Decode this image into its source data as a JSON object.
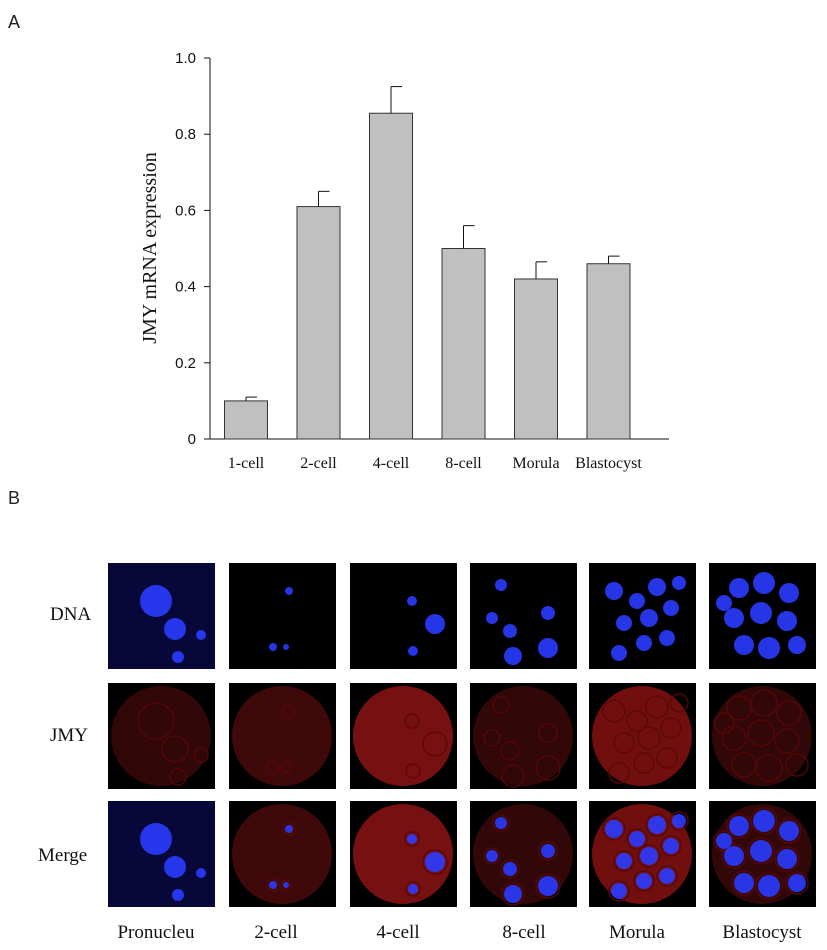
{
  "panel_a_letter": "A",
  "panel_b_letter": "B",
  "chart_data": {
    "type": "bar",
    "title": "",
    "xlabel": "",
    "ylabel": "JMY mRNA expression",
    "categories": [
      "1-cell",
      "2-cell",
      "4-cell",
      "8-cell",
      "Morula",
      "Blastocyst"
    ],
    "values": [
      0.1,
      0.61,
      0.855,
      0.5,
      0.42,
      0.46
    ],
    "errors": [
      0.01,
      0.04,
      0.07,
      0.06,
      0.045,
      0.02
    ],
    "ylim": [
      0,
      1.0
    ],
    "yticks": [
      "0",
      "0.2",
      "0.4",
      "0.6",
      "0.8",
      "1.0"
    ],
    "ytick_values": [
      0,
      0.2,
      0.4,
      0.6,
      0.8,
      1.0
    ],
    "bar_color": "#c0c0c0",
    "bar_edge_color": "#333333",
    "grid": false,
    "legend": "none"
  },
  "panel_b": {
    "rows": [
      "DNA",
      "JMY",
      "Merge"
    ],
    "columns": [
      "Pronucleu",
      "2-cell",
      "4-cell",
      "8-cell",
      "Morula",
      "Blastocyst"
    ],
    "colors": {
      "dna": "#2a3cff",
      "jmy": "#b01818",
      "background": "#000000"
    }
  }
}
